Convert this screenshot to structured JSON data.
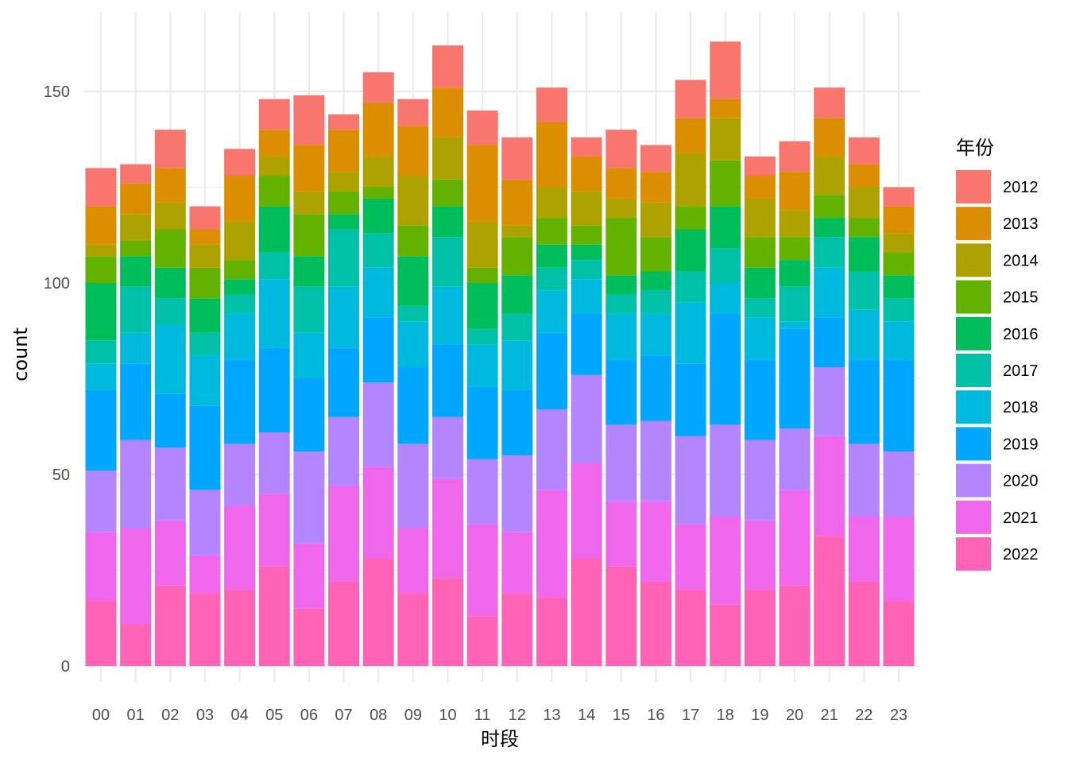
{
  "chart_data": {
    "type": "bar",
    "stacked": true,
    "title": "",
    "xlabel": "时段",
    "ylabel": "count",
    "ylim": [
      0,
      170
    ],
    "yticks": [
      0,
      50,
      100,
      150
    ],
    "grid": true,
    "legend": {
      "title": "年份",
      "position": "right"
    },
    "categories": [
      "00",
      "01",
      "02",
      "03",
      "04",
      "05",
      "06",
      "07",
      "08",
      "09",
      "10",
      "11",
      "12",
      "13",
      "14",
      "15",
      "16",
      "17",
      "18",
      "19",
      "20",
      "21",
      "22",
      "23"
    ],
    "series": [
      {
        "name": "2012",
        "color": "#F8766D",
        "values": [
          10,
          5,
          10,
          6,
          7,
          8,
          13,
          4,
          8,
          7,
          11,
          9,
          11,
          9,
          5,
          10,
          7,
          10,
          15,
          5,
          8,
          8,
          7,
          5
        ]
      },
      {
        "name": "2013",
        "color": "#DB8E00",
        "values": [
          10,
          8,
          9,
          4,
          12,
          7,
          12,
          11,
          14,
          13,
          13,
          20,
          12,
          17,
          9,
          8,
          8,
          9,
          5,
          6,
          10,
          10,
          6,
          7
        ]
      },
      {
        "name": "2014",
        "color": "#AEA200",
        "values": [
          3,
          7,
          7,
          6,
          10,
          5,
          6,
          5,
          8,
          13,
          11,
          12,
          3,
          8,
          9,
          5,
          9,
          14,
          11,
          10,
          7,
          10,
          8,
          5
        ]
      },
      {
        "name": "2015",
        "color": "#64B200",
        "values": [
          7,
          4,
          10,
          8,
          5,
          8,
          11,
          6,
          3,
          8,
          7,
          4,
          10,
          7,
          5,
          15,
          9,
          6,
          12,
          8,
          6,
          6,
          5,
          6
        ]
      },
      {
        "name": "2016",
        "color": "#00BD5C",
        "values": [
          15,
          8,
          8,
          9,
          4,
          12,
          8,
          4,
          9,
          13,
          8,
          12,
          10,
          6,
          4,
          5,
          5,
          11,
          11,
          8,
          7,
          5,
          9,
          6
        ]
      },
      {
        "name": "2017",
        "color": "#00C1A7",
        "values": [
          6,
          12,
          7,
          6,
          5,
          7,
          12,
          15,
          9,
          4,
          13,
          4,
          7,
          6,
          5,
          5,
          6,
          8,
          9,
          5,
          9,
          8,
          10,
          6
        ]
      },
      {
        "name": "2018",
        "color": "#00BADE",
        "values": [
          7,
          8,
          18,
          13,
          12,
          18,
          12,
          16,
          13,
          12,
          15,
          11,
          13,
          11,
          9,
          12,
          11,
          16,
          8,
          11,
          2,
          13,
          13,
          10
        ]
      },
      {
        "name": "2019",
        "color": "#00A6FF",
        "values": [
          21,
          20,
          14,
          22,
          22,
          22,
          19,
          18,
          17,
          20,
          19,
          19,
          17,
          20,
          16,
          17,
          17,
          19,
          29,
          21,
          26,
          13,
          22,
          24
        ]
      },
      {
        "name": "2020",
        "color": "#B385FF",
        "values": [
          16,
          23,
          19,
          17,
          16,
          16,
          24,
          18,
          22,
          22,
          16,
          17,
          20,
          21,
          23,
          20,
          21,
          23,
          24,
          21,
          16,
          18,
          19,
          17
        ]
      },
      {
        "name": "2021",
        "color": "#EF67EB",
        "values": [
          18,
          25,
          17,
          10,
          22,
          19,
          17,
          25,
          24,
          17,
          26,
          24,
          16,
          28,
          25,
          17,
          21,
          17,
          23,
          18,
          25,
          26,
          17,
          22
        ]
      },
      {
        "name": "2022",
        "color": "#FF63B6",
        "values": [
          17,
          11,
          21,
          19,
          20,
          26,
          15,
          22,
          28,
          19,
          23,
          13,
          19,
          18,
          28,
          26,
          22,
          20,
          16,
          20,
          21,
          34,
          22,
          17
        ]
      }
    ]
  }
}
